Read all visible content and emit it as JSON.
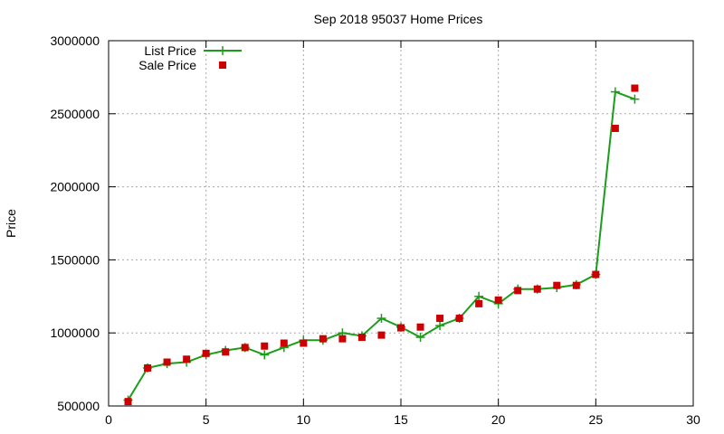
{
  "chart_data": {
    "type": "line",
    "title": "Sep 2018 95037 Home Prices",
    "xlabel": "",
    "ylabel": "Price",
    "xlim": [
      0,
      30
    ],
    "ylim": [
      500000,
      3000000
    ],
    "xticks": [
      0,
      5,
      10,
      15,
      20,
      25,
      30
    ],
    "yticks": [
      500000,
      1000000,
      1500000,
      2000000,
      2500000,
      3000000
    ],
    "grid": true,
    "legend_position": "top-left",
    "series": [
      {
        "name": "List Price",
        "style": "line+plus",
        "color": "#1a9e1a",
        "x": [
          1,
          2,
          3,
          4,
          5,
          6,
          7,
          8,
          9,
          10,
          11,
          12,
          13,
          14,
          15,
          16,
          17,
          18,
          19,
          20,
          21,
          22,
          23,
          24,
          25,
          26,
          27
        ],
        "y": [
          540000,
          760000,
          790000,
          800000,
          850000,
          880000,
          900000,
          850000,
          900000,
          950000,
          950000,
          1000000,
          980000,
          1100000,
          1040000,
          970000,
          1050000,
          1100000,
          1250000,
          1200000,
          1300000,
          1300000,
          1310000,
          1330000,
          1400000,
          2650000,
          2600000
        ]
      },
      {
        "name": "Sale Price",
        "style": "square",
        "color": "#cc0000",
        "x": [
          1,
          2,
          3,
          4,
          5,
          6,
          7,
          8,
          9,
          10,
          11,
          12,
          13,
          14,
          15,
          16,
          17,
          18,
          19,
          20,
          21,
          22,
          23,
          24,
          25,
          26,
          27
        ],
        "y": [
          530000,
          760000,
          800000,
          820000,
          860000,
          870000,
          900000,
          910000,
          930000,
          930000,
          960000,
          960000,
          970000,
          985000,
          1035000,
          1040000,
          1100000,
          1100000,
          1200000,
          1225000,
          1290000,
          1300000,
          1325000,
          1325000,
          1400000,
          2400000,
          2675000
        ]
      }
    ]
  }
}
